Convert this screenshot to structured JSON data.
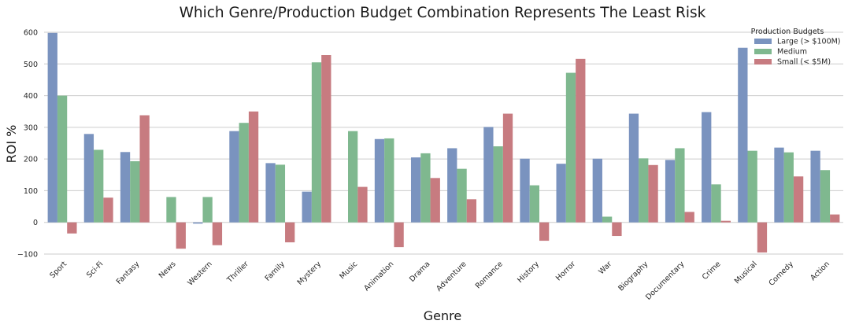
{
  "chart_data": {
    "type": "bar",
    "title": "Which Genre/Production Budget Combination Represents The Least Risk",
    "xlabel": "Genre",
    "ylabel": "ROI %",
    "ylim": [
      -100,
      600
    ],
    "yticks": [
      -100,
      0,
      100,
      200,
      300,
      400,
      500,
      600
    ],
    "grid": "horizontal",
    "legend": {
      "title": "Production Budgets",
      "placement": "top-right"
    },
    "categories": [
      "Sport",
      "Sci-Fi",
      "Fantasy",
      "News",
      "Western",
      "Thriller",
      "Family",
      "Mystery",
      "Music",
      "Animation",
      "Drama",
      "Adventure",
      "Romance",
      "History",
      "Horror",
      "War",
      "Biography",
      "Documentary",
      "Crime",
      "Musical",
      "Comedy",
      "Action"
    ],
    "series": [
      {
        "name": "Large (> $100M)",
        "color": "#7a93bf",
        "values": [
          598,
          279,
          222,
          0,
          -4,
          288,
          187,
          97,
          0,
          263,
          205,
          234,
          301,
          201,
          185,
          201,
          343,
          197,
          348,
          551,
          236,
          226
        ]
      },
      {
        "name": "Medium",
        "color": "#7fb88f",
        "values": [
          400,
          229,
          193,
          80,
          80,
          314,
          182,
          505,
          288,
          265,
          218,
          169,
          240,
          117,
          472,
          18,
          202,
          234,
          120,
          226,
          221,
          165
        ]
      },
      {
        "name": "Small (< $5M)",
        "color": "#c77b80",
        "values": [
          -35,
          78,
          338,
          -83,
          -72,
          350,
          -63,
          528,
          112,
          -78,
          140,
          73,
          343,
          -58,
          516,
          -43,
          181,
          33,
          5,
          -95,
          145,
          25
        ]
      }
    ]
  }
}
